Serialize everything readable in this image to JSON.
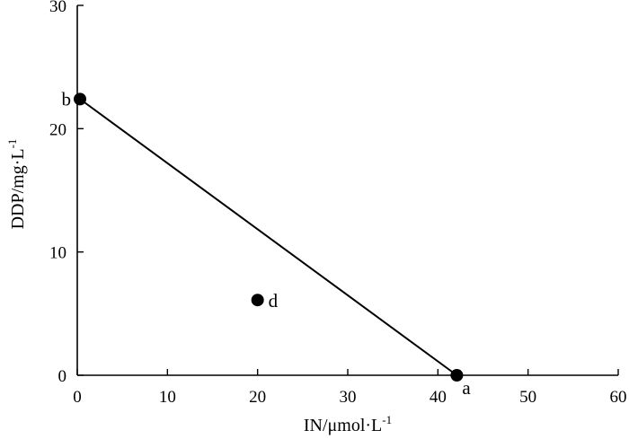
{
  "chart_data": {
    "type": "scatter",
    "xlabel": {
      "base": "IN/μmol·L",
      "sup": "-1"
    },
    "ylabel": {
      "base": "DDP/mg·L",
      "sup": "-1"
    },
    "xlim": [
      0,
      60
    ],
    "ylim": [
      0,
      30
    ],
    "x_ticks": [
      0,
      10,
      20,
      30,
      40,
      50,
      60
    ],
    "y_ticks": [
      0,
      10,
      20,
      30
    ],
    "grid": false,
    "points": [
      {
        "label": "a",
        "x": 42.1,
        "y": 0
      },
      {
        "label": "b",
        "x": 0.3,
        "y": 22.4
      },
      {
        "label": "d",
        "x": 20,
        "y": 6.1
      }
    ],
    "line": {
      "from": "b",
      "to": "a"
    }
  }
}
